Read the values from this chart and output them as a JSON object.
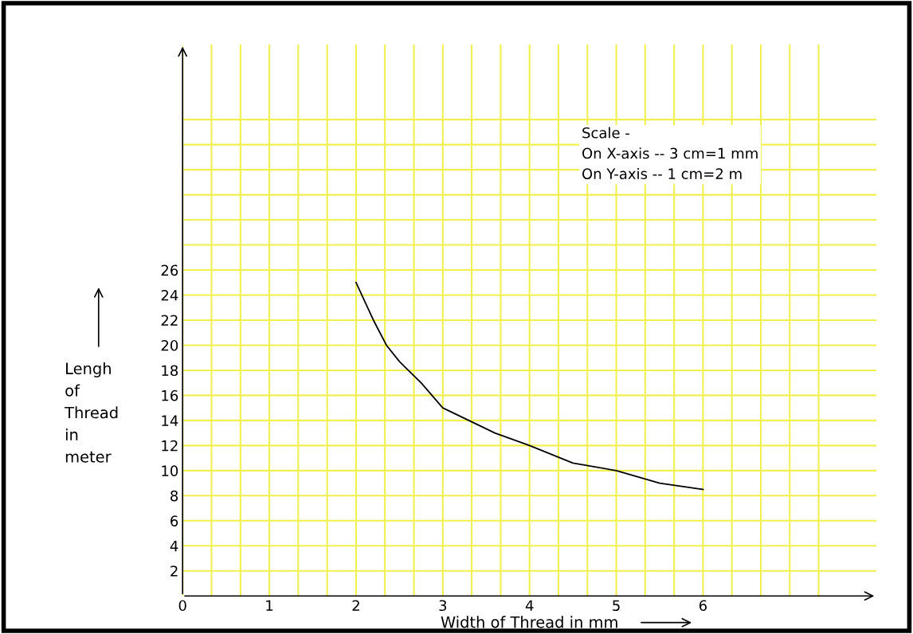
{
  "chart_data": {
    "type": "line",
    "xlabel": "Width of Thread in mm",
    "ylabel": "Lengh\nof\nThread\nin\nmeter",
    "x": [
      2,
      2.2,
      2.35,
      2.5,
      2.75,
      3,
      3.3,
      3.6,
      4,
      4.5,
      5,
      5.5,
      6
    ],
    "series": [
      {
        "color": "#000000",
        "values": [
          25,
          22,
          20,
          18.7,
          17,
          15,
          14,
          13,
          12,
          10.6,
          10,
          9,
          8.5
        ]
      }
    ],
    "xlim": [
      0,
      8
    ],
    "ylim": [
      0,
      44
    ],
    "xticks": [
      0,
      {
        "value": 0.333,
        "label": null
      },
      {
        "value": 0.667,
        "label": null
      },
      1,
      {
        "value": 1.333,
        "label": null
      },
      {
        "value": 1.667,
        "label": null
      },
      2,
      {
        "value": 2.333,
        "label": null
      },
      {
        "value": 2.667,
        "label": null
      },
      3,
      {
        "value": 3.333,
        "label": null
      },
      {
        "value": 3.667,
        "label": null
      },
      4,
      {
        "value": 4.333,
        "label": null
      },
      {
        "value": 4.667,
        "label": null
      },
      5,
      {
        "value": 5.333,
        "label": null
      },
      {
        "value": 5.667,
        "label": null
      },
      6,
      {
        "value": 6.333,
        "label": null
      },
      {
        "value": 6.667,
        "label": null
      },
      {
        "value": 7,
        "label": null
      },
      {
        "value": 7.333,
        "label": null
      }
    ],
    "yticks": [
      2,
      4,
      6,
      8,
      10,
      12,
      14,
      16,
      18,
      20,
      22,
      24,
      26,
      {
        "value": 28,
        "label": null
      },
      {
        "value": 30,
        "label": null
      },
      {
        "value": 32,
        "label": null
      },
      {
        "value": 34,
        "label": null
      },
      {
        "value": 36,
        "label": null
      },
      {
        "value": 38,
        "label": null
      }
    ],
    "grid": true,
    "marker": "none",
    "line_style": "solid",
    "annotations": [
      "Scale -\nOn X-axis -- 3 cm=1 mm\nOn Y-axis -- 1 cm=2 m"
    ]
  }
}
